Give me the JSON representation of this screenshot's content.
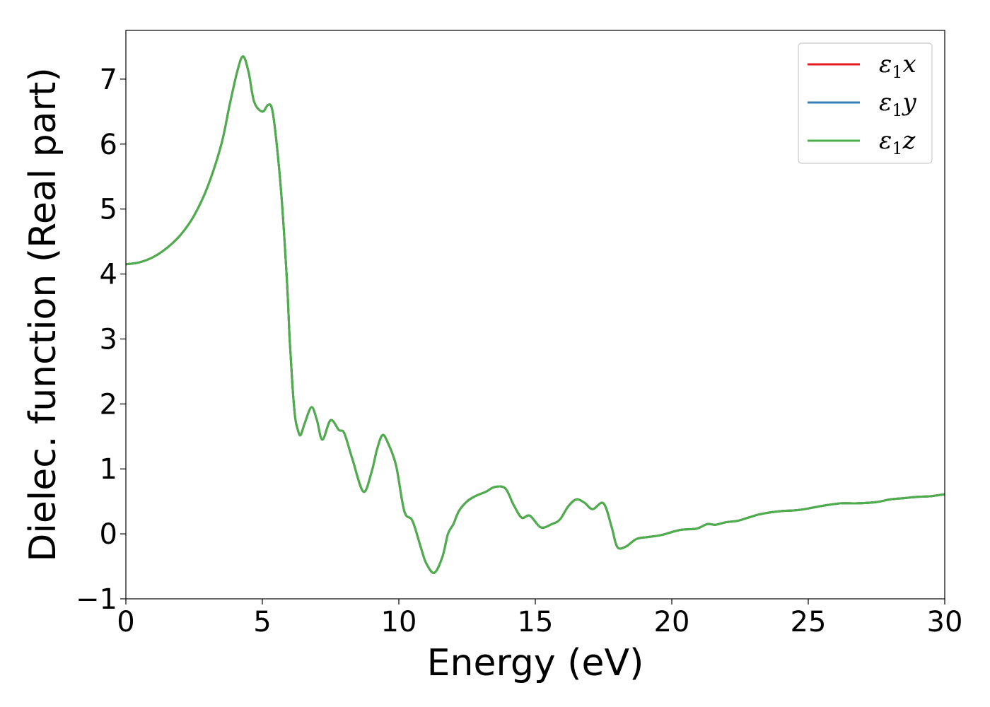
{
  "chart_data": {
    "type": "line",
    "title": "",
    "xlabel": "Energy (eV)",
    "ylabel": "Dielec. function (Real part)",
    "xlim": [
      0,
      30
    ],
    "ylim": [
      -1,
      7.75
    ],
    "xticks": [
      0,
      5,
      10,
      15,
      20,
      25,
      30
    ],
    "xtick_labels": [
      "0",
      "5",
      "10",
      "15",
      "20",
      "25",
      "30"
    ],
    "yticks": [
      -1,
      0,
      1,
      2,
      3,
      4,
      5,
      6,
      7
    ],
    "ytick_labels": [
      "−1",
      "0",
      "1",
      "2",
      "3",
      "4",
      "5",
      "6",
      "7"
    ],
    "grid": false,
    "legend_position": "top-right",
    "x": [
      0,
      0.5,
      1,
      1.5,
      2,
      2.5,
      3,
      3.5,
      3.8,
      4.1,
      4.3,
      4.5,
      4.7,
      5.0,
      5.2,
      5.35,
      5.5,
      5.7,
      5.9,
      6.0,
      6.1,
      6.2,
      6.3,
      6.4,
      6.55,
      6.8,
      7.0,
      7.2,
      7.5,
      7.8,
      8.0,
      8.3,
      8.7,
      9.0,
      9.2,
      9.4,
      9.6,
      9.9,
      10.2,
      10.5,
      10.8,
      11.0,
      11.3,
      11.6,
      11.8,
      12.0,
      12.2,
      12.5,
      12.8,
      13.2,
      13.5,
      13.9,
      14.2,
      14.5,
      14.8,
      15.2,
      15.6,
      15.9,
      16.2,
      16.5,
      16.8,
      17.1,
      17.5,
      17.8,
      18.0,
      18.3,
      18.7,
      19.1,
      19.6,
      20.3,
      20.9,
      21.3,
      21.6,
      22.0,
      22.4,
      22.8,
      23.2,
      23.6,
      24.0,
      24.7,
      25.5,
      26.2,
      26.8,
      27.5,
      28.0,
      28.5,
      29.0,
      29.5,
      30.0
    ],
    "series": [
      {
        "name": "ε₁x",
        "label_base": "ε",
        "label_sub": "1",
        "label_var": "x",
        "color": "#e41a1c",
        "values": [
          4.15,
          4.18,
          4.26,
          4.4,
          4.6,
          4.9,
          5.35,
          6.0,
          6.6,
          7.15,
          7.35,
          7.1,
          6.65,
          6.5,
          6.6,
          6.55,
          6.1,
          5.2,
          3.9,
          3.0,
          2.3,
          1.8,
          1.6,
          1.52,
          1.7,
          1.95,
          1.75,
          1.45,
          1.75,
          1.6,
          1.55,
          1.15,
          0.65,
          0.95,
          1.3,
          1.52,
          1.4,
          1.05,
          0.35,
          0.2,
          -0.2,
          -0.45,
          -0.6,
          -0.35,
          0.0,
          0.15,
          0.35,
          0.5,
          0.58,
          0.65,
          0.72,
          0.7,
          0.45,
          0.25,
          0.28,
          0.1,
          0.15,
          0.22,
          0.42,
          0.53,
          0.48,
          0.38,
          0.47,
          0.1,
          -0.2,
          -0.2,
          -0.08,
          -0.05,
          -0.02,
          0.06,
          0.08,
          0.15,
          0.14,
          0.18,
          0.2,
          0.25,
          0.3,
          0.33,
          0.35,
          0.37,
          0.43,
          0.47,
          0.47,
          0.49,
          0.53,
          0.55,
          0.57,
          0.58,
          0.61
        ]
      },
      {
        "name": "ε₁y",
        "label_base": "ε",
        "label_sub": "1",
        "label_var": "y",
        "color": "#377eb8",
        "values": [
          4.15,
          4.18,
          4.26,
          4.4,
          4.6,
          4.9,
          5.35,
          6.0,
          6.6,
          7.15,
          7.35,
          7.1,
          6.65,
          6.5,
          6.6,
          6.55,
          6.1,
          5.2,
          3.9,
          3.0,
          2.3,
          1.8,
          1.6,
          1.52,
          1.7,
          1.95,
          1.75,
          1.45,
          1.75,
          1.6,
          1.55,
          1.15,
          0.65,
          0.95,
          1.3,
          1.52,
          1.4,
          1.05,
          0.35,
          0.2,
          -0.2,
          -0.45,
          -0.6,
          -0.35,
          0.0,
          0.15,
          0.35,
          0.5,
          0.58,
          0.65,
          0.72,
          0.7,
          0.45,
          0.25,
          0.28,
          0.1,
          0.15,
          0.22,
          0.42,
          0.53,
          0.48,
          0.38,
          0.47,
          0.1,
          -0.2,
          -0.2,
          -0.08,
          -0.05,
          -0.02,
          0.06,
          0.08,
          0.15,
          0.14,
          0.18,
          0.2,
          0.25,
          0.3,
          0.33,
          0.35,
          0.37,
          0.43,
          0.47,
          0.47,
          0.49,
          0.53,
          0.55,
          0.57,
          0.58,
          0.61
        ]
      },
      {
        "name": "ε₁z",
        "label_base": "ε",
        "label_sub": "1",
        "label_var": "z",
        "color": "#4daf4a",
        "values": [
          4.15,
          4.18,
          4.26,
          4.4,
          4.6,
          4.9,
          5.35,
          6.0,
          6.6,
          7.15,
          7.35,
          7.1,
          6.65,
          6.5,
          6.6,
          6.55,
          6.1,
          5.2,
          3.9,
          3.0,
          2.3,
          1.8,
          1.6,
          1.52,
          1.7,
          1.95,
          1.75,
          1.45,
          1.75,
          1.6,
          1.55,
          1.15,
          0.65,
          0.95,
          1.3,
          1.52,
          1.4,
          1.05,
          0.35,
          0.2,
          -0.2,
          -0.45,
          -0.6,
          -0.35,
          0.0,
          0.15,
          0.35,
          0.5,
          0.58,
          0.65,
          0.72,
          0.7,
          0.45,
          0.25,
          0.28,
          0.1,
          0.15,
          0.22,
          0.42,
          0.53,
          0.48,
          0.38,
          0.47,
          0.1,
          -0.2,
          -0.2,
          -0.08,
          -0.05,
          -0.02,
          0.06,
          0.08,
          0.15,
          0.14,
          0.18,
          0.2,
          0.25,
          0.3,
          0.33,
          0.35,
          0.37,
          0.43,
          0.47,
          0.47,
          0.49,
          0.53,
          0.55,
          0.57,
          0.58,
          0.61
        ]
      }
    ]
  }
}
